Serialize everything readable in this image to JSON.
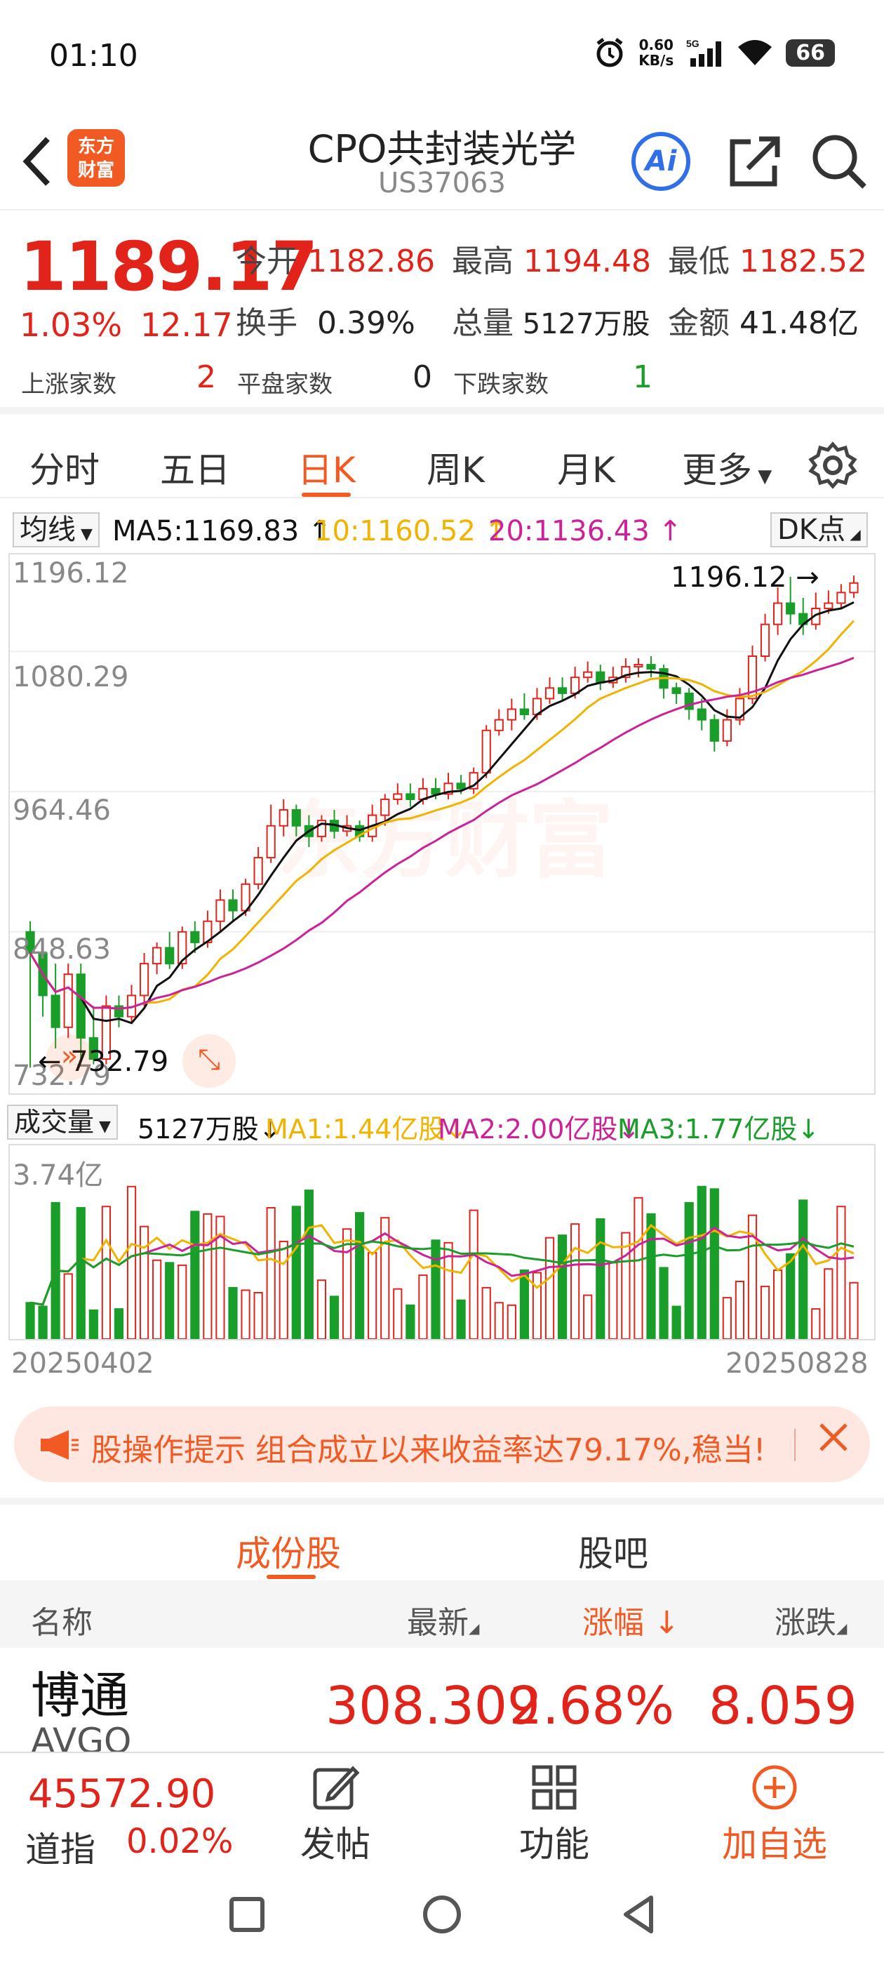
{
  "status": {
    "time": "01:10",
    "net_speed_value": "0.60",
    "net_speed_unit": "KB/s",
    "network": "5G",
    "battery": "66"
  },
  "header": {
    "back_icon": "chevron-left-icon",
    "logo_text": "东方财富",
    "title": "CPO共封装光学",
    "code": "US37063",
    "ai_label": "Ai"
  },
  "quote": {
    "price": "1189.17",
    "change_pct": "1.03%",
    "change": "12.17",
    "open_label": "今开",
    "open": "1182.86",
    "high_label": "最高",
    "high": "1194.48",
    "low_label": "最低",
    "low": "1182.52",
    "turnover_label": "换手",
    "turnover": "0.39%",
    "volume_label": "总量",
    "volume": "5127万股",
    "amount_label": "金额",
    "amount": "41.48亿",
    "up_label": "上涨家数",
    "up": "2",
    "flat_label": "平盘家数",
    "flat": "0",
    "down_label": "下跌家数",
    "down": "1"
  },
  "tabs": [
    "分时",
    "五日",
    "日K",
    "周K",
    "月K",
    "更多"
  ],
  "active_tab": "日K",
  "ma": {
    "selector": "均线",
    "ma5": "MA5:1169.83",
    "ma10": "10:1160.52",
    "ma20": "20:1136.43",
    "dk": "DK点"
  },
  "kline": {
    "y_labels": [
      "1196.12",
      "1080.29",
      "964.46",
      "848.63",
      "732.79"
    ],
    "high_marker": "1196.12",
    "low_marker": "732.79",
    "watermark": "东方财富"
  },
  "volume": {
    "selector": "成交量",
    "vol": "5127万股",
    "ma1": "MA1:1.44亿股",
    "ma2": "MA2:2.00亿股",
    "ma3": "MA3:1.77亿股",
    "max_label": "3.74亿"
  },
  "dates": {
    "start": "20250402",
    "end": "20250828"
  },
  "tip": {
    "text": "股操作提示 组合成立以来收益率达79.17%,稳当!"
  },
  "section_tabs": [
    "成份股",
    "股吧"
  ],
  "table": {
    "headers": {
      "name": "名称",
      "latest": "最新",
      "change_pct": "涨幅",
      "change": "涨跌"
    },
    "rows": [
      {
        "name": "博通",
        "code": "AVGO",
        "latest": "308.309",
        "change_pct": "2.68%",
        "change": "8.059"
      }
    ]
  },
  "bottom": {
    "index_value": "45572.90",
    "index_name": "道指",
    "index_pct": "0.02%",
    "post_label": "发帖",
    "func_label": "功能",
    "add_label": "加自选"
  },
  "colors": {
    "accent": "#f15a22",
    "up": "#e2231a",
    "down": "#1a9e2a",
    "ma5": "#111111",
    "ma10": "#f0b400",
    "ma20": "#cc2299"
  },
  "chart_data": {
    "type": "candlestick",
    "y_range": [
      732.79,
      1196.12
    ],
    "candles": [
      [
        860,
        840,
        870,
        732
      ],
      [
        840,
        800,
        850,
        780
      ],
      [
        800,
        770,
        830,
        750
      ],
      [
        770,
        820,
        830,
        760
      ],
      [
        820,
        760,
        830,
        740
      ],
      [
        760,
        740,
        790,
        735
      ],
      [
        740,
        790,
        800,
        735
      ],
      [
        790,
        780,
        800,
        770
      ],
      [
        780,
        800,
        810,
        775
      ],
      [
        800,
        830,
        840,
        790
      ],
      [
        830,
        845,
        850,
        820
      ],
      [
        845,
        830,
        860,
        825
      ],
      [
        830,
        860,
        865,
        825
      ],
      [
        860,
        850,
        870,
        840
      ],
      [
        850,
        870,
        880,
        845
      ],
      [
        870,
        890,
        900,
        860
      ],
      [
        890,
        880,
        900,
        870
      ],
      [
        880,
        905,
        910,
        875
      ],
      [
        905,
        930,
        940,
        900
      ],
      [
        930,
        960,
        980,
        925
      ],
      [
        960,
        975,
        985,
        950
      ],
      [
        975,
        960,
        980,
        950
      ],
      [
        960,
        950,
        970,
        940
      ],
      [
        950,
        965,
        970,
        945
      ],
      [
        965,
        955,
        975,
        948
      ],
      [
        955,
        960,
        970,
        950
      ],
      [
        960,
        950,
        965,
        945
      ],
      [
        950,
        970,
        980,
        945
      ],
      [
        970,
        985,
        990,
        960
      ],
      [
        985,
        990,
        1000,
        980
      ],
      [
        990,
        985,
        1000,
        978
      ],
      [
        985,
        995,
        1005,
        980
      ],
      [
        995,
        990,
        1005,
        985
      ],
      [
        990,
        1000,
        1010,
        985
      ],
      [
        1000,
        995,
        1008,
        990
      ],
      [
        995,
        1010,
        1015,
        990
      ],
      [
        1010,
        1050,
        1055,
        1005
      ],
      [
        1050,
        1060,
        1070,
        1045
      ],
      [
        1060,
        1070,
        1080,
        1050
      ],
      [
        1070,
        1065,
        1085,
        1060
      ],
      [
        1065,
        1080,
        1090,
        1060
      ],
      [
        1080,
        1090,
        1100,
        1075
      ],
      [
        1090,
        1085,
        1100,
        1078
      ],
      [
        1085,
        1100,
        1110,
        1080
      ],
      [
        1100,
        1105,
        1115,
        1095
      ],
      [
        1105,
        1095,
        1112,
        1088
      ],
      [
        1095,
        1100,
        1110,
        1090
      ],
      [
        1100,
        1110,
        1118,
        1095
      ],
      [
        1110,
        1112,
        1118,
        1100
      ],
      [
        1112,
        1108,
        1120,
        1100
      ],
      [
        1108,
        1090,
        1112,
        1080
      ],
      [
        1090,
        1085,
        1095,
        1075
      ],
      [
        1085,
        1070,
        1090,
        1060
      ],
      [
        1070,
        1060,
        1080,
        1050
      ],
      [
        1060,
        1040,
        1065,
        1030
      ],
      [
        1040,
        1060,
        1070,
        1035
      ],
      [
        1060,
        1080,
        1090,
        1055
      ],
      [
        1080,
        1120,
        1130,
        1075
      ],
      [
        1120,
        1150,
        1160,
        1115
      ],
      [
        1150,
        1170,
        1185,
        1140
      ],
      [
        1170,
        1160,
        1195,
        1150
      ],
      [
        1160,
        1150,
        1175,
        1140
      ],
      [
        1150,
        1165,
        1180,
        1145
      ],
      [
        1165,
        1170,
        1182,
        1160
      ],
      [
        1170,
        1180,
        1188,
        1165
      ],
      [
        1180,
        1189,
        1196,
        1175
      ]
    ],
    "volume_max_yi": 3.74
  }
}
